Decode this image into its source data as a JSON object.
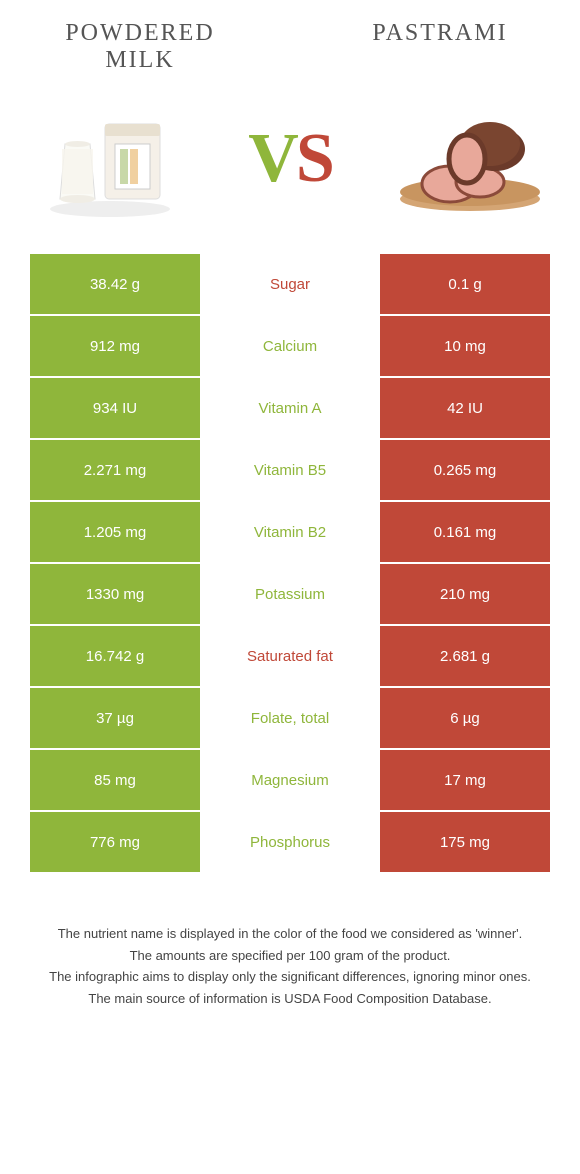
{
  "foods": {
    "left": {
      "title": "Powdered milk"
    },
    "right": {
      "title": "Pastrami"
    }
  },
  "vs": {
    "v": "V",
    "s": "S"
  },
  "colors": {
    "left_bg": "#8fb63b",
    "right_bg": "#c04838",
    "label_green": "#8fb63b",
    "label_red": "#c04838"
  },
  "rows": [
    {
      "left": "38.42 g",
      "label": "Sugar",
      "right": "0.1 g",
      "winner": "right"
    },
    {
      "left": "912 mg",
      "label": "Calcium",
      "right": "10 mg",
      "winner": "left"
    },
    {
      "left": "934 IU",
      "label": "Vitamin A",
      "right": "42 IU",
      "winner": "left"
    },
    {
      "left": "2.271 mg",
      "label": "Vitamin B5",
      "right": "0.265 mg",
      "winner": "left"
    },
    {
      "left": "1.205 mg",
      "label": "Vitamin B2",
      "right": "0.161 mg",
      "winner": "left"
    },
    {
      "left": "1330 mg",
      "label": "Potassium",
      "right": "210 mg",
      "winner": "left"
    },
    {
      "left": "16.742 g",
      "label": "Saturated fat",
      "right": "2.681 g",
      "winner": "right"
    },
    {
      "left": "37 µg",
      "label": "Folate, total",
      "right": "6 µg",
      "winner": "left"
    },
    {
      "left": "85 mg",
      "label": "Magnesium",
      "right": "17 mg",
      "winner": "left"
    },
    {
      "left": "776 mg",
      "label": "Phosphorus",
      "right": "175 mg",
      "winner": "left"
    }
  ],
  "footer": [
    "The nutrient name is displayed in the color of the food we considered as 'winner'.",
    "The amounts are specified per 100 gram of the product.",
    "The infographic aims to display only the significant differences, ignoring minor ones.",
    "The main source of information is USDA Food Composition Database."
  ]
}
